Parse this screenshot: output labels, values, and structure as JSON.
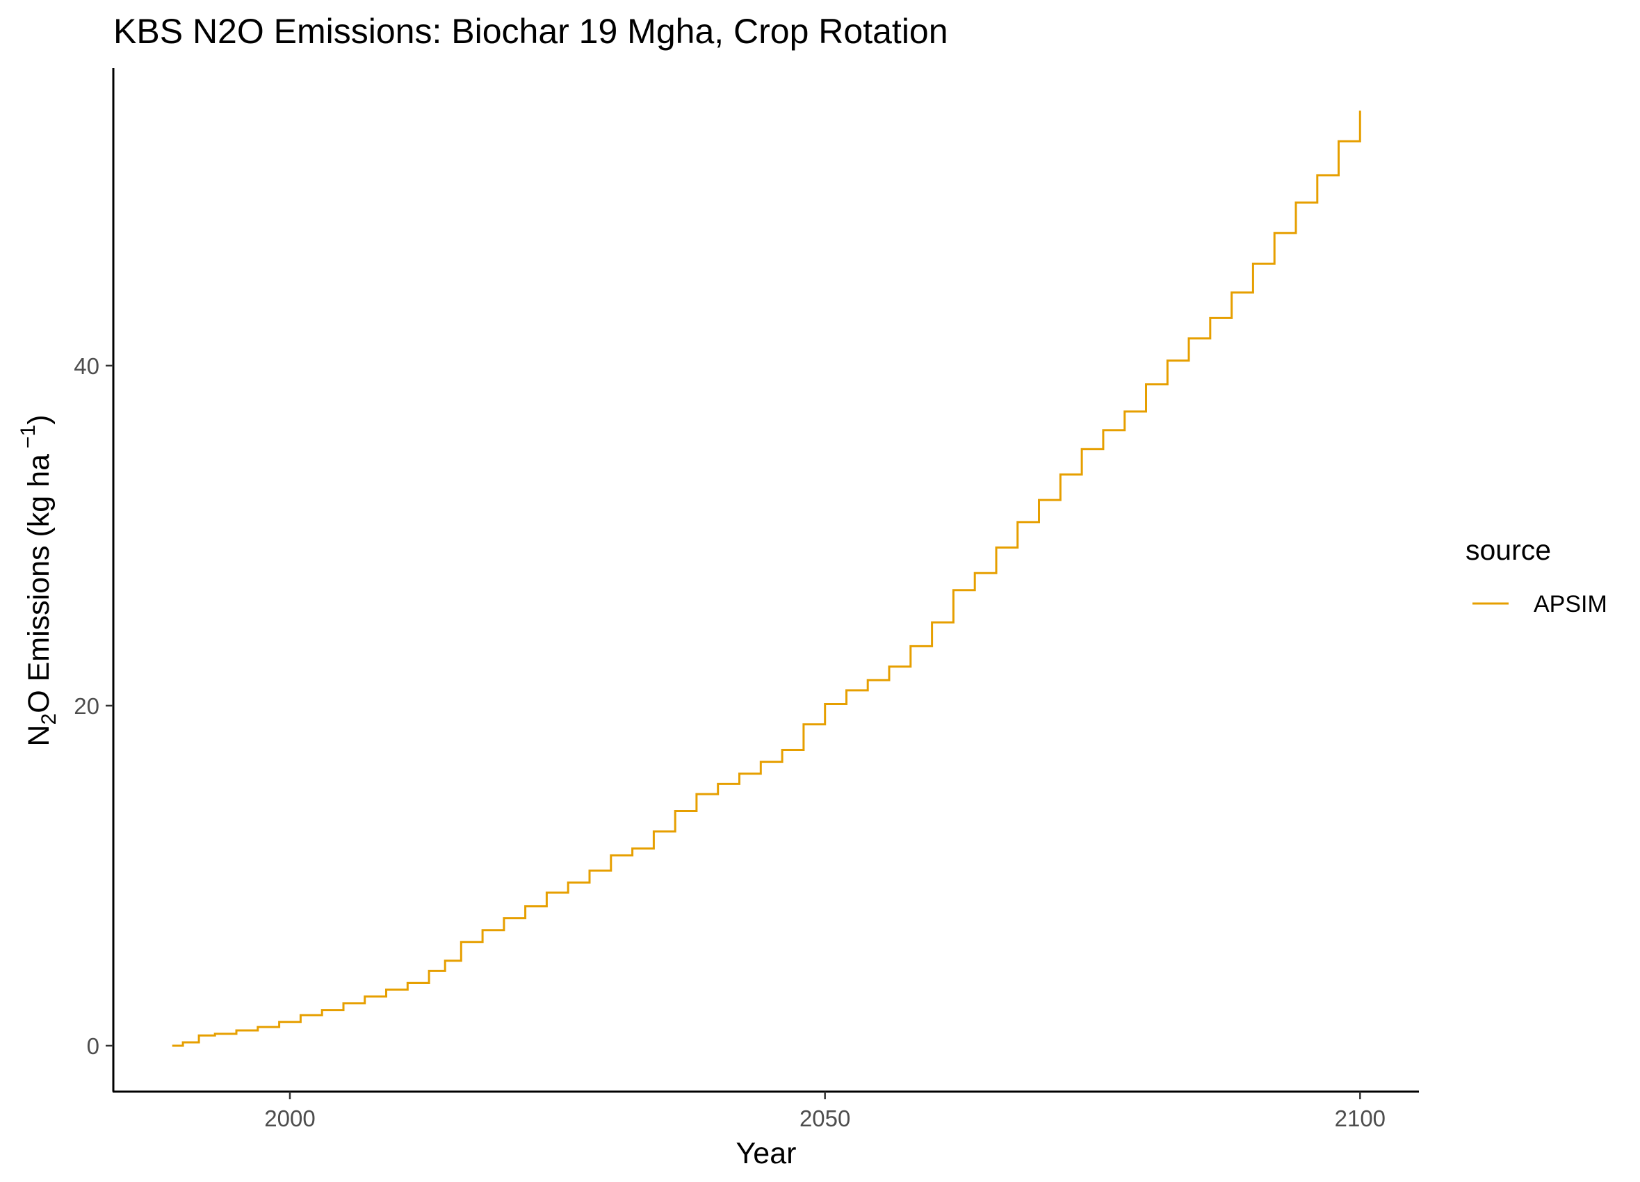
{
  "chart_data": {
    "type": "line",
    "title": "KBS N2O Emissions:  Biochar 19 Mgha, Crop Rotation",
    "xlabel": "Year",
    "ylabel": {
      "prefix": "N",
      "subscript": "2",
      "main": "O Emissions (kg ha",
      "superscript": "−1",
      "suffix": ")"
    },
    "xlim": [
      1983.5,
      2105.5
    ],
    "ylim": [
      -2.7,
      57.5
    ],
    "x_ticks": [
      2000,
      2050,
      2100
    ],
    "x_tick_labels": [
      "2000",
      "2050",
      "2100"
    ],
    "y_ticks": [
      0,
      20,
      40
    ],
    "y_tick_labels": [
      "0",
      "20",
      "40"
    ],
    "grid": false,
    "legend": {
      "position": "right",
      "title": "source",
      "entries": [
        "APSIM"
      ]
    },
    "series": [
      {
        "name": "APSIM",
        "color": "#E69F00",
        "step": true,
        "x": [
          1989,
          1990,
          1991.5,
          1993,
          1995,
          1997,
          1999,
          2001,
          2003,
          2005,
          2007,
          2009,
          2011,
          2013,
          2014.5,
          2016,
          2018,
          2020,
          2022,
          2024,
          2026,
          2028,
          2030,
          2032,
          2034,
          2036,
          2038,
          2040,
          2042,
          2044,
          2046,
          2048,
          2050,
          2052,
          2054,
          2056,
          2058,
          2060,
          2062,
          2064,
          2066,
          2068,
          2070,
          2072,
          2074,
          2076,
          2078,
          2080,
          2082,
          2084,
          2086,
          2088,
          2090,
          2092,
          2094,
          2096,
          2098,
          2100
        ],
        "y": [
          0.0,
          0.2,
          0.6,
          0.7,
          0.9,
          1.1,
          1.4,
          1.8,
          2.1,
          2.5,
          2.9,
          3.3,
          3.7,
          4.4,
          5.0,
          6.1,
          6.8,
          7.5,
          8.2,
          9.0,
          9.6,
          10.3,
          11.2,
          11.6,
          12.6,
          13.8,
          14.8,
          15.4,
          16.0,
          16.7,
          17.4,
          18.9,
          20.1,
          20.9,
          21.5,
          22.3,
          23.5,
          24.9,
          26.8,
          27.8,
          29.3,
          30.8,
          32.1,
          33.6,
          35.1,
          36.2,
          37.3,
          38.9,
          40.3,
          41.6,
          42.8,
          44.3,
          46.0,
          47.8,
          49.6,
          51.2,
          53.2,
          55.0
        ]
      }
    ]
  }
}
